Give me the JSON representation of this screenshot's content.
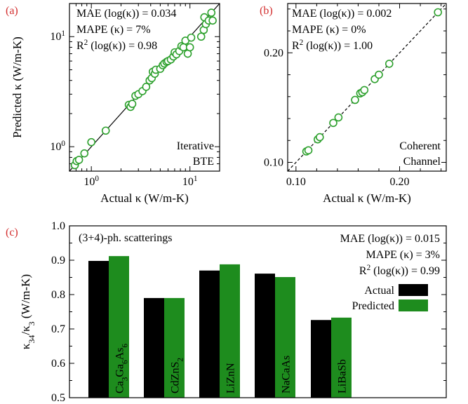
{
  "chart_data": [
    {
      "panel": "(a)",
      "type": "scatter",
      "scale": "log",
      "xlabel": "Actual κ (W/m-K)",
      "ylabel": "Predicted κ (W/m-K)",
      "xlim": [
        0.6,
        20
      ],
      "ylim": [
        0.6,
        20
      ],
      "x_ticks": [
        {
          "value": 1,
          "base": "10",
          "exp": "0"
        },
        {
          "value": 10,
          "base": "10",
          "exp": "1"
        }
      ],
      "y_ticks": [
        {
          "value": 1,
          "base": "10",
          "exp": "0"
        },
        {
          "value": 10,
          "base": "10",
          "exp": "1"
        }
      ],
      "annotations": [
        "MAE (log(κ)) = 0.034",
        "MAPE (κ) = 7%",
        "R",
        "2",
        " (log(κ)) = 0.98"
      ],
      "corner_text": [
        "Iterative",
        "BTE"
      ],
      "marker_color": "#2ca02c",
      "points": [
        [
          0.68,
          0.68
        ],
        [
          0.71,
          0.74
        ],
        [
          0.75,
          0.76
        ],
        [
          0.85,
          0.87
        ],
        [
          1.0,
          1.1
        ],
        [
          1.4,
          1.4
        ],
        [
          2.4,
          2.4
        ],
        [
          2.5,
          2.3
        ],
        [
          2.6,
          2.45
        ],
        [
          2.8,
          2.9
        ],
        [
          3.0,
          3.0
        ],
        [
          3.3,
          3.2
        ],
        [
          3.6,
          3.5
        ],
        [
          3.9,
          4.0
        ],
        [
          4.1,
          4.2
        ],
        [
          4.2,
          4.8
        ],
        [
          4.4,
          4.6
        ],
        [
          4.5,
          5.0
        ],
        [
          5.0,
          5.1
        ],
        [
          5.3,
          5.5
        ],
        [
          5.5,
          5.7
        ],
        [
          5.8,
          5.9
        ],
        [
          6.0,
          6.0
        ],
        [
          6.4,
          6.2
        ],
        [
          6.8,
          6.6
        ],
        [
          7.0,
          7.2
        ],
        [
          7.3,
          6.9
        ],
        [
          7.8,
          7.4
        ],
        [
          8.2,
          8.2
        ],
        [
          8.6,
          8.0
        ],
        [
          9.0,
          9.2
        ],
        [
          9.5,
          7.0
        ],
        [
          10.0,
          8.0
        ],
        [
          10.3,
          9.8
        ],
        [
          13.0,
          10.0
        ],
        [
          13.8,
          11.5
        ],
        [
          14.0,
          15.0
        ],
        [
          14.5,
          13.0
        ],
        [
          15.5,
          14.0
        ],
        [
          16.5,
          16.5
        ],
        [
          17.0,
          14.0
        ]
      ]
    },
    {
      "panel": "(b)",
      "type": "scatter",
      "xlabel": "Actual κ (W/m-K)",
      "xlim": [
        0.092,
        0.245
      ],
      "ylim": [
        0.092,
        0.245
      ],
      "x_ticks": [
        "0.10",
        "0.20"
      ],
      "y_ticks": [
        "0.10",
        "0.20"
      ],
      "annotations": [
        "MAE (log(κ)) = 0.002",
        "MAPE (κ) = 0%",
        "R",
        "2",
        " (log(κ)) = 1.00"
      ],
      "corner_text": [
        "Coherent",
        "Channel"
      ],
      "marker_color": "#2ca02c",
      "points": [
        [
          0.11,
          0.11
        ],
        [
          0.112,
          0.111
        ],
        [
          0.121,
          0.121
        ],
        [
          0.123,
          0.123
        ],
        [
          0.136,
          0.136
        ],
        [
          0.141,
          0.141
        ],
        [
          0.157,
          0.157
        ],
        [
          0.162,
          0.163
        ],
        [
          0.164,
          0.164
        ],
        [
          0.166,
          0.166
        ],
        [
          0.176,
          0.176
        ],
        [
          0.18,
          0.18
        ],
        [
          0.19,
          0.19
        ],
        [
          0.237,
          0.237
        ]
      ]
    },
    {
      "panel": "(c)",
      "type": "bar",
      "ylabel": [
        "κ",
        "34",
        "/κ",
        "3",
        " (W/m-K)"
      ],
      "ylim": [
        0.5,
        1.0
      ],
      "y_ticks": [
        "0.5",
        "0.6",
        "0.7",
        "0.8",
        "0.9",
        "1.0"
      ],
      "title": "(3+4)-ph. scatterings",
      "annotations": [
        "MAE (log(κ)) = 0.015",
        "MAPE (κ) = 3%",
        "R",
        "2",
        " (log(κ)) = 0.99"
      ],
      "categories": [
        [
          {
            "t": "Ca"
          },
          {
            "t": "3",
            "s": 1
          },
          {
            "t": "Ga"
          },
          {
            "t": "6",
            "s": 1
          },
          {
            "t": "As"
          },
          {
            "t": "6",
            "s": 1
          }
        ],
        [
          {
            "t": "CdZnS"
          },
          {
            "t": "2",
            "s": 1
          }
        ],
        [
          {
            "t": "LiZnN"
          }
        ],
        [
          {
            "t": "NaCaAs"
          }
        ],
        [
          {
            "t": "LiBaSb"
          }
        ]
      ],
      "series": [
        {
          "name": "Actual",
          "color": "#000000",
          "values": [
            0.898,
            0.79,
            0.87,
            0.861,
            0.726
          ]
        },
        {
          "name": "Predicted",
          "color": "#1e8c1e",
          "values": [
            0.912,
            0.79,
            0.888,
            0.851,
            0.733
          ]
        }
      ]
    }
  ]
}
